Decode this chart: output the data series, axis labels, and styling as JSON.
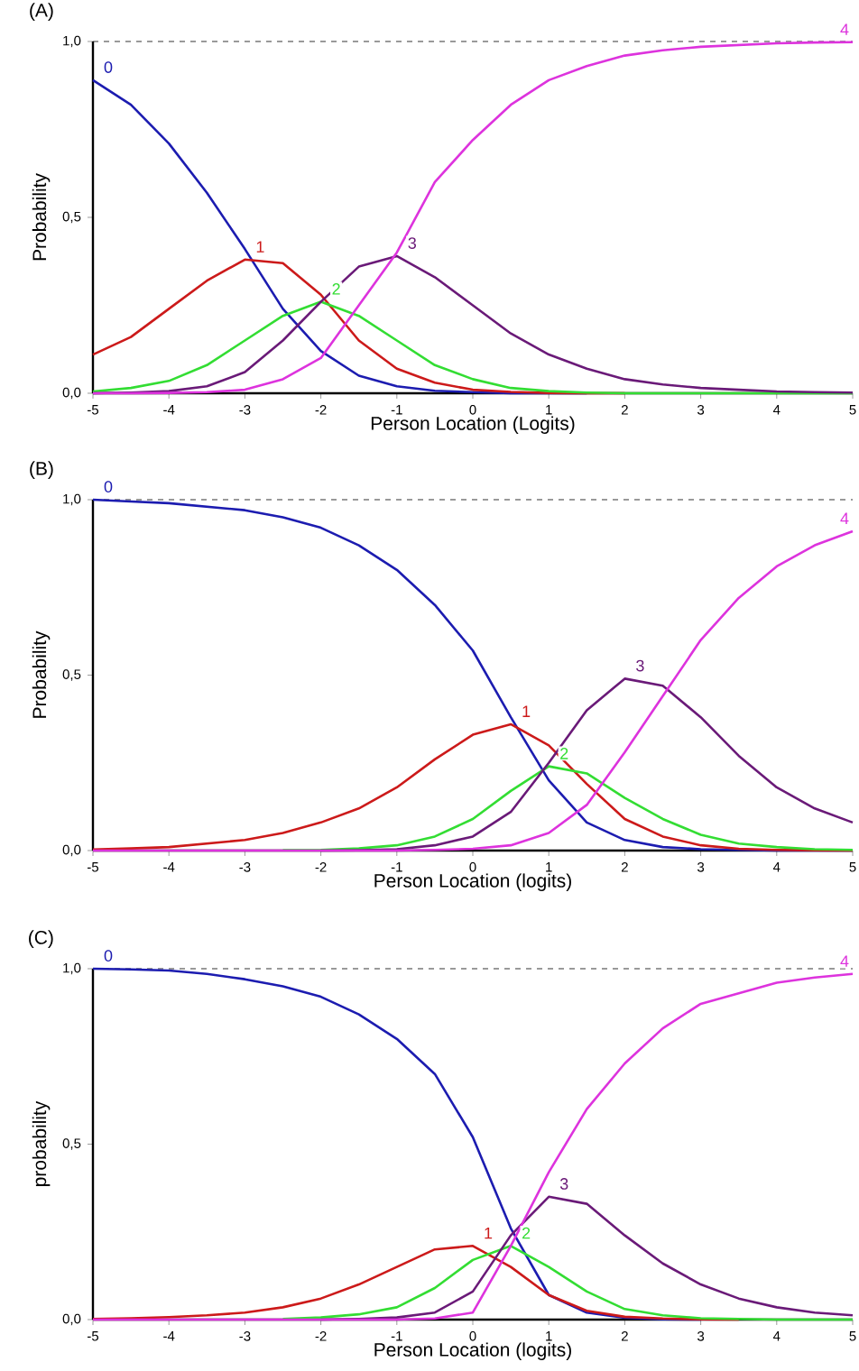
{
  "chart_data": [
    {
      "type": "line",
      "title": "(A)",
      "xlabel": "Person Location (Logits)",
      "ylabel": "Probability",
      "xlim": [
        -5,
        5
      ],
      "ylim": [
        0,
        1
      ],
      "xticks": [
        -5,
        -4,
        -3,
        -2,
        -1,
        0,
        1,
        2,
        3,
        4,
        5
      ],
      "yticks": [
        {
          "value": 0,
          "label": "0,0"
        },
        {
          "value": 0.5,
          "label": "0,5"
        },
        {
          "value": 1,
          "label": "1,0"
        }
      ],
      "grid": false,
      "marker": "none",
      "line_style": "solid",
      "ref_lines": [
        {
          "axis": "y",
          "value": 1,
          "line_style": "dashed",
          "color": "#000000"
        }
      ],
      "x": [
        -5,
        -4.5,
        -4,
        -3.5,
        -3,
        -2.5,
        -2,
        -1.5,
        -1,
        -0.5,
        0,
        0.5,
        1,
        1.5,
        2,
        2.5,
        3,
        3.5,
        4,
        4.5,
        5
      ],
      "series": [
        {
          "name": "0",
          "color": "#1c1cb0",
          "values": [
            0.89,
            0.82,
            0.71,
            0.57,
            0.41,
            0.24,
            0.12,
            0.05,
            0.02,
            0.007,
            0.003,
            0,
            0,
            0,
            null,
            null,
            null,
            null,
            null,
            null,
            null
          ]
        },
        {
          "name": "1",
          "color": "#cc1a1a",
          "values": [
            0.11,
            0.16,
            0.24,
            0.32,
            0.38,
            0.37,
            0.28,
            0.15,
            0.07,
            0.03,
            0.01,
            0.004,
            0.001,
            0,
            0,
            null,
            null,
            null,
            null,
            null,
            null
          ]
        },
        {
          "name": "2",
          "color": "#33dd33",
          "values": [
            0.005,
            0.015,
            0.035,
            0.08,
            0.15,
            0.22,
            0.26,
            0.22,
            0.15,
            0.08,
            0.04,
            0.015,
            0.006,
            0.002,
            0,
            0,
            0,
            0,
            0,
            0,
            0
          ]
        },
        {
          "name": "3",
          "color": "#6a1a78",
          "values": [
            0,
            0.002,
            0.006,
            0.02,
            0.06,
            0.15,
            0.26,
            0.36,
            0.39,
            0.33,
            0.25,
            0.17,
            0.11,
            0.07,
            0.04,
            0.025,
            0.015,
            0.01,
            0.005,
            0.003,
            0.002
          ]
        },
        {
          "name": "4",
          "color": "#dd33dd",
          "values": [
            0,
            0,
            0.001,
            0.003,
            0.01,
            0.04,
            0.1,
            0.25,
            0.4,
            0.6,
            0.72,
            0.82,
            0.89,
            0.93,
            0.96,
            0.975,
            0.985,
            0.99,
            0.995,
            0.997,
            0.998
          ]
        }
      ]
    },
    {
      "type": "line",
      "title": "(B)",
      "xlabel": "Person Location (logits)",
      "ylabel": "Probability",
      "xlim": [
        -5,
        5
      ],
      "ylim": [
        0,
        1
      ],
      "xticks": [
        -5,
        -4,
        -3,
        -2,
        -1,
        0,
        1,
        2,
        3,
        4,
        5
      ],
      "yticks": [
        {
          "value": 0,
          "label": "0,0"
        },
        {
          "value": 0.5,
          "label": "0,5"
        },
        {
          "value": 1,
          "label": "1,0"
        }
      ],
      "grid": false,
      "marker": "none",
      "line_style": "solid",
      "ref_lines": [
        {
          "axis": "y",
          "value": 1,
          "line_style": "dashed",
          "color": "#000000"
        }
      ],
      "x": [
        -5,
        -4.5,
        -4,
        -3.5,
        -3,
        -2.5,
        -2,
        -1.5,
        -1,
        -0.5,
        0,
        0.5,
        1,
        1.5,
        2,
        2.5,
        3,
        3.5,
        4,
        4.5,
        5
      ],
      "series": [
        {
          "name": "0",
          "color": "#1c1cb0",
          "values": [
            1.0,
            0.995,
            0.99,
            0.98,
            0.97,
            0.95,
            0.92,
            0.87,
            0.8,
            0.7,
            0.57,
            0.38,
            0.2,
            0.08,
            0.03,
            0.01,
            0.004,
            0.002,
            0,
            0,
            0
          ]
        },
        {
          "name": "1",
          "color": "#cc1a1a",
          "values": [
            0.003,
            0.006,
            0.01,
            0.02,
            0.03,
            0.05,
            0.08,
            0.12,
            0.18,
            0.26,
            0.33,
            0.36,
            0.3,
            0.19,
            0.09,
            0.04,
            0.015,
            0.005,
            0.002,
            0.001,
            0
          ]
        },
        {
          "name": "2",
          "color": "#33dd33",
          "values": [
            null,
            null,
            null,
            null,
            null,
            0.001,
            0.002,
            0.006,
            0.015,
            0.04,
            0.09,
            0.17,
            0.24,
            0.22,
            0.15,
            0.09,
            0.045,
            0.02,
            0.01,
            0.004,
            0.002
          ]
        },
        {
          "name": "3",
          "color": "#6a1a78",
          "values": [
            null,
            null,
            null,
            null,
            null,
            null,
            0,
            0.001,
            0.004,
            0.015,
            0.04,
            0.11,
            0.25,
            0.4,
            0.49,
            0.47,
            0.38,
            0.27,
            0.18,
            0.12,
            0.08
          ]
        },
        {
          "name": "4",
          "color": "#dd33dd",
          "values": [
            0,
            0,
            0,
            0,
            0,
            0,
            0,
            0,
            0,
            0.002,
            0.005,
            0.015,
            0.05,
            0.13,
            0.28,
            0.44,
            0.6,
            0.72,
            0.81,
            0.87,
            0.91
          ]
        }
      ]
    },
    {
      "type": "line",
      "title": "(C)",
      "xlabel": "Person Location (logits)",
      "ylabel": "probability",
      "xlim": [
        -5,
        5
      ],
      "ylim": [
        0,
        1
      ],
      "xticks": [
        -5,
        -4,
        -3,
        -2,
        -1,
        0,
        1,
        2,
        3,
        4,
        5
      ],
      "yticks": [
        {
          "value": 0,
          "label": "0,0"
        },
        {
          "value": 0.5,
          "label": "0,5"
        },
        {
          "value": 1,
          "label": "1,0"
        }
      ],
      "grid": false,
      "marker": "none",
      "line_style": "solid",
      "ref_lines": [
        {
          "axis": "y",
          "value": 1,
          "line_style": "dashed",
          "color": "#000000"
        }
      ],
      "x": [
        -5,
        -4.5,
        -4,
        -3.5,
        -3,
        -2.5,
        -2,
        -1.5,
        -1,
        -0.5,
        0,
        0.5,
        1,
        1.5,
        2,
        2.5,
        3,
        3.5,
        4,
        4.5,
        5
      ],
      "series": [
        {
          "name": "0",
          "color": "#1c1cb0",
          "values": [
            1.0,
            0.998,
            0.995,
            0.985,
            0.97,
            0.95,
            0.92,
            0.87,
            0.8,
            0.7,
            0.52,
            0.26,
            0.07,
            0.02,
            0.005,
            0.001,
            0,
            null,
            null,
            null,
            null
          ]
        },
        {
          "name": "1",
          "color": "#cc1a1a",
          "values": [
            0.002,
            0.004,
            0.007,
            0.012,
            0.02,
            0.035,
            0.06,
            0.1,
            0.15,
            0.2,
            0.21,
            0.15,
            0.07,
            0.025,
            0.008,
            0.003,
            0.001,
            0,
            null,
            null,
            null
          ]
        },
        {
          "name": "2",
          "color": "#33dd33",
          "values": [
            null,
            null,
            null,
            null,
            null,
            0.002,
            0.006,
            0.015,
            0.035,
            0.09,
            0.17,
            0.21,
            0.15,
            0.08,
            0.03,
            0.012,
            0.004,
            0.002,
            0,
            0,
            0
          ]
        },
        {
          "name": "3",
          "color": "#6a1a78",
          "values": [
            null,
            null,
            null,
            null,
            null,
            null,
            0,
            0.002,
            0.006,
            0.02,
            0.08,
            0.24,
            0.35,
            0.33,
            0.24,
            0.16,
            0.1,
            0.06,
            0.035,
            0.02,
            0.012
          ]
        },
        {
          "name": "4",
          "color": "#dd33dd",
          "values": [
            0,
            0,
            0,
            0,
            0,
            0,
            0,
            0,
            0,
            0.003,
            0.02,
            0.21,
            0.42,
            0.6,
            0.73,
            0.83,
            0.9,
            0.93,
            0.96,
            0.975,
            0.985
          ]
        }
      ]
    }
  ]
}
